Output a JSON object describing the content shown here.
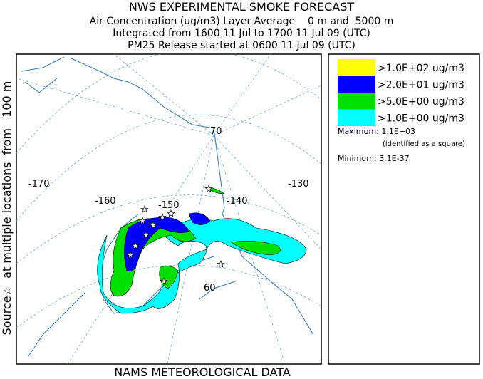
{
  "header": {
    "title": "NWS EXPERIMENTAL SMOKE FORECAST",
    "lines": [
      "Air Concentration (ug/m3) Layer Average    0 m and  5000 m",
      "Integrated from 1600 11 Jul to 1700 11 Jul 09 (UTC)",
      "PM25 Release started at 0600 11 Jul 09 (UTC)"
    ]
  },
  "side_label": "Source☆  at multiple locations  from   100 m",
  "footer": "NAMS METEOROLOGICAL DATA",
  "legend": {
    "items": [
      {
        "label": ">1.0E+02 ug/m3",
        "color": "#ffff00"
      },
      {
        "label": ">2.0E+01 ug/m3",
        "color": "#0000ff"
      },
      {
        "label": ">5.0E+00 ug/m3",
        "color": "#00e000"
      },
      {
        "label": ">1.0E+00 ug/m3",
        "color": "#00ffff"
      }
    ],
    "maximum": "Maximum: 1.1E+03",
    "maximum_note": "(identified as a square)",
    "minimum": "Minimum: 3.1E-37"
  },
  "map": {
    "labels": [
      "-170",
      "-160",
      "-150",
      "-140",
      "-130",
      "70",
      "60"
    ]
  }
}
